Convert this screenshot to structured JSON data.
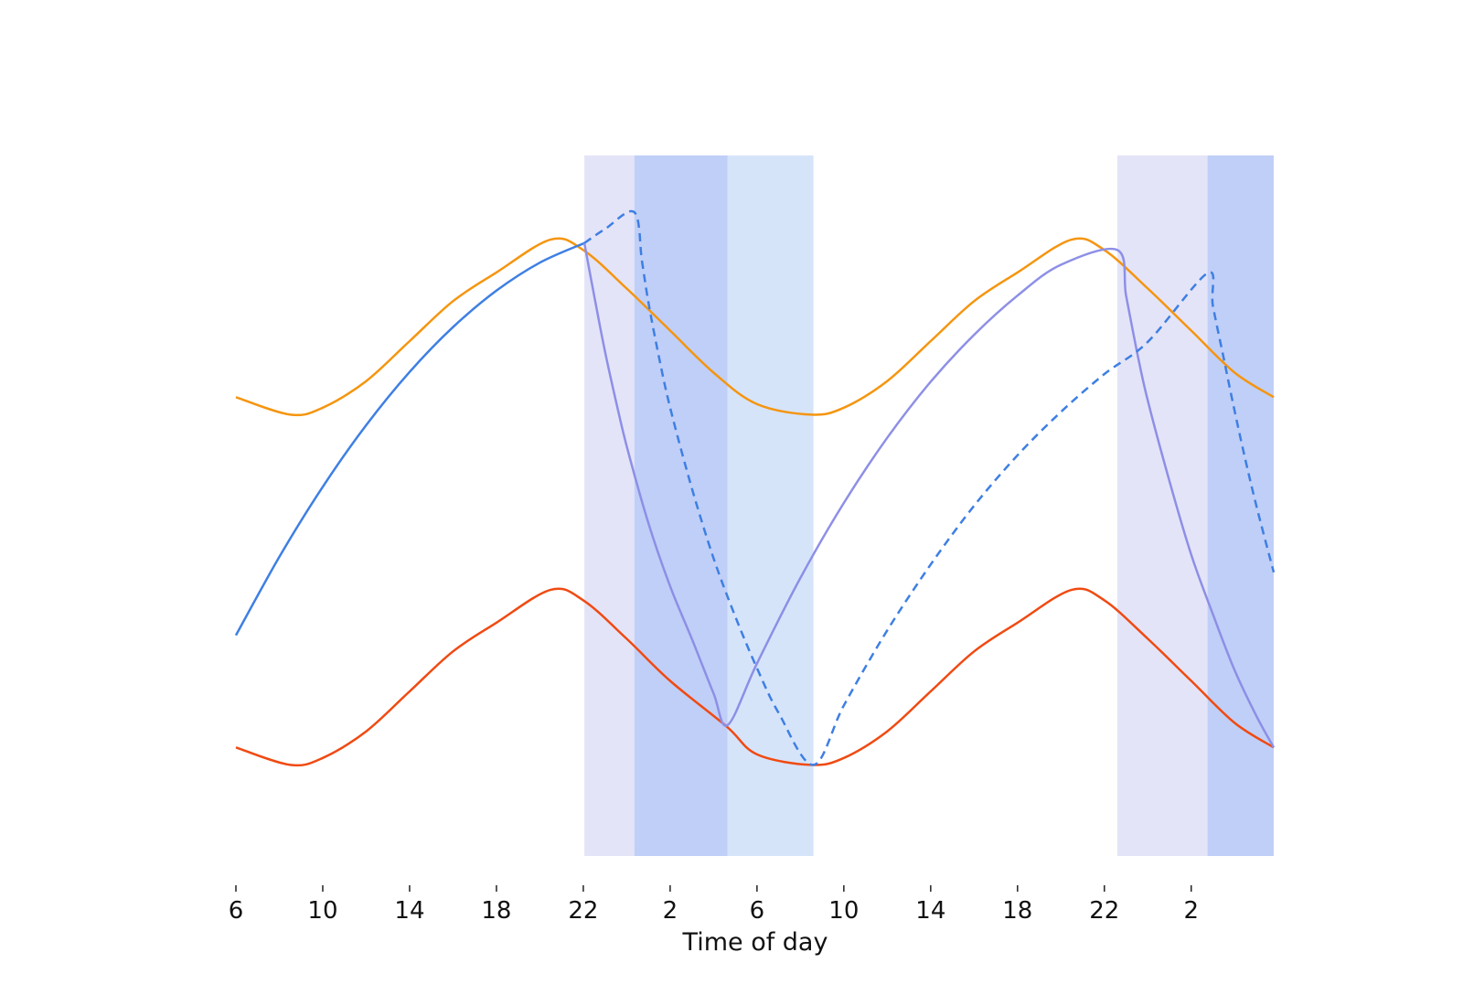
{
  "chart_data": {
    "type": "line",
    "title": "",
    "xlabel": "Time of day",
    "ylabel": "",
    "xlim": [
      6,
      53.8
    ],
    "ylim": [
      0,
      100
    ],
    "grid": false,
    "x_ticks": [
      {
        "x": 6,
        "label": "6"
      },
      {
        "x": 10,
        "label": "10"
      },
      {
        "x": 14,
        "label": "14"
      },
      {
        "x": 18,
        "label": "18"
      },
      {
        "x": 22,
        "label": "22"
      },
      {
        "x": 26,
        "label": "2"
      },
      {
        "x": 30,
        "label": "6"
      },
      {
        "x": 34,
        "label": "10"
      },
      {
        "x": 38,
        "label": "14"
      },
      {
        "x": 42,
        "label": "18"
      },
      {
        "x": 46,
        "label": "22"
      },
      {
        "x": 50,
        "label": "2"
      }
    ],
    "shaded_regions": [
      {
        "x0": 22.05,
        "x1": 24.35,
        "color": "#e4e4f8"
      },
      {
        "x0": 24.35,
        "x1": 28.65,
        "color": "#c0cff7"
      },
      {
        "x0": 28.65,
        "x1": 32.6,
        "color": "#d6e4fa"
      },
      {
        "x0": 46.6,
        "x1": 50.75,
        "color": "#e4e4f8"
      },
      {
        "x0": 50.75,
        "x1": 53.8,
        "color": "#c0cff7"
      }
    ],
    "series": [
      {
        "color": "#f5950f",
        "dash": "solid",
        "x": [
          6,
          8.5,
          10,
          12,
          14,
          16,
          18,
          20.5,
          22,
          24,
          26,
          28,
          30,
          32.5,
          34,
          36,
          38,
          40,
          42,
          44.5,
          46,
          48,
          50,
          52,
          53.8
        ],
        "y": [
          65.5,
          63,
          64,
          67.8,
          73.5,
          79.2,
          83.3,
          88,
          86.5,
          81,
          75,
          69,
          64.5,
          63,
          64,
          67.8,
          73.5,
          79.2,
          83.3,
          88,
          86.5,
          81,
          75,
          69,
          65.5
        ]
      },
      {
        "color": "#f04a12",
        "dash": "solid",
        "x": [
          6,
          8.5,
          10,
          12,
          14,
          16,
          18,
          20.5,
          22,
          24,
          26,
          28.6,
          30,
          32.5,
          34,
          36,
          38,
          40,
          42,
          44.5,
          46,
          48,
          50,
          52,
          53.8
        ],
        "y": [
          15.5,
          13,
          14,
          17.8,
          23.5,
          29.2,
          33.3,
          38,
          36.5,
          31,
          25,
          18.5,
          14.5,
          13,
          14,
          17.8,
          23.5,
          29.2,
          33.3,
          38,
          36.5,
          31,
          25,
          19,
          15.5
        ]
      },
      {
        "color": "#3e7fe3",
        "dash": "solid",
        "x": [
          6,
          8,
          10,
          12,
          14,
          16,
          18,
          20,
          22.05
        ],
        "y": [
          31.5,
          42.7,
          52.7,
          61.5,
          69.1,
          75.5,
          80.7,
          84.7,
          87.5
        ]
      },
      {
        "color": "#8d8fe6",
        "dash": "solid",
        "x": [
          22.05,
          22.5,
          23,
          23.5,
          24,
          25,
          26,
          27,
          28,
          28.65,
          30,
          32,
          34,
          36,
          38,
          40,
          42,
          44,
          46.6,
          47,
          47.5,
          48,
          49,
          50,
          51,
          52,
          53,
          53.8
        ],
        "y": [
          87.5,
          80,
          72,
          65,
          58.5,
          47.5,
          38.5,
          31,
          23.2,
          18.7,
          27.5,
          39.7,
          50.4,
          59.7,
          67.7,
          74.4,
          80,
          84.4,
          86.5,
          80,
          72,
          65,
          53.5,
          43,
          34.5,
          26.5,
          20,
          15.5
        ]
      },
      {
        "color": "#3e7fe3",
        "dash": "dashed",
        "x": [
          22.05,
          23,
          24.35,
          24.7,
          25,
          25.5,
          26,
          27,
          28,
          29,
          30,
          31,
          32.6,
          34,
          36,
          38,
          40,
          42,
          44,
          46,
          48,
          50.75,
          51,
          51.5,
          52,
          52.5,
          53,
          53.8
        ],
        "y": [
          87.5,
          89.5,
          91.9,
          85,
          79,
          71,
          64,
          52.5,
          42.5,
          34.2,
          26.8,
          20.4,
          13,
          21.5,
          32.2,
          41.6,
          50,
          57.2,
          63.4,
          68.8,
          73.4,
          83.2,
          78.5,
          71,
          63.5,
          56.5,
          50,
          40.5
        ]
      }
    ]
  }
}
